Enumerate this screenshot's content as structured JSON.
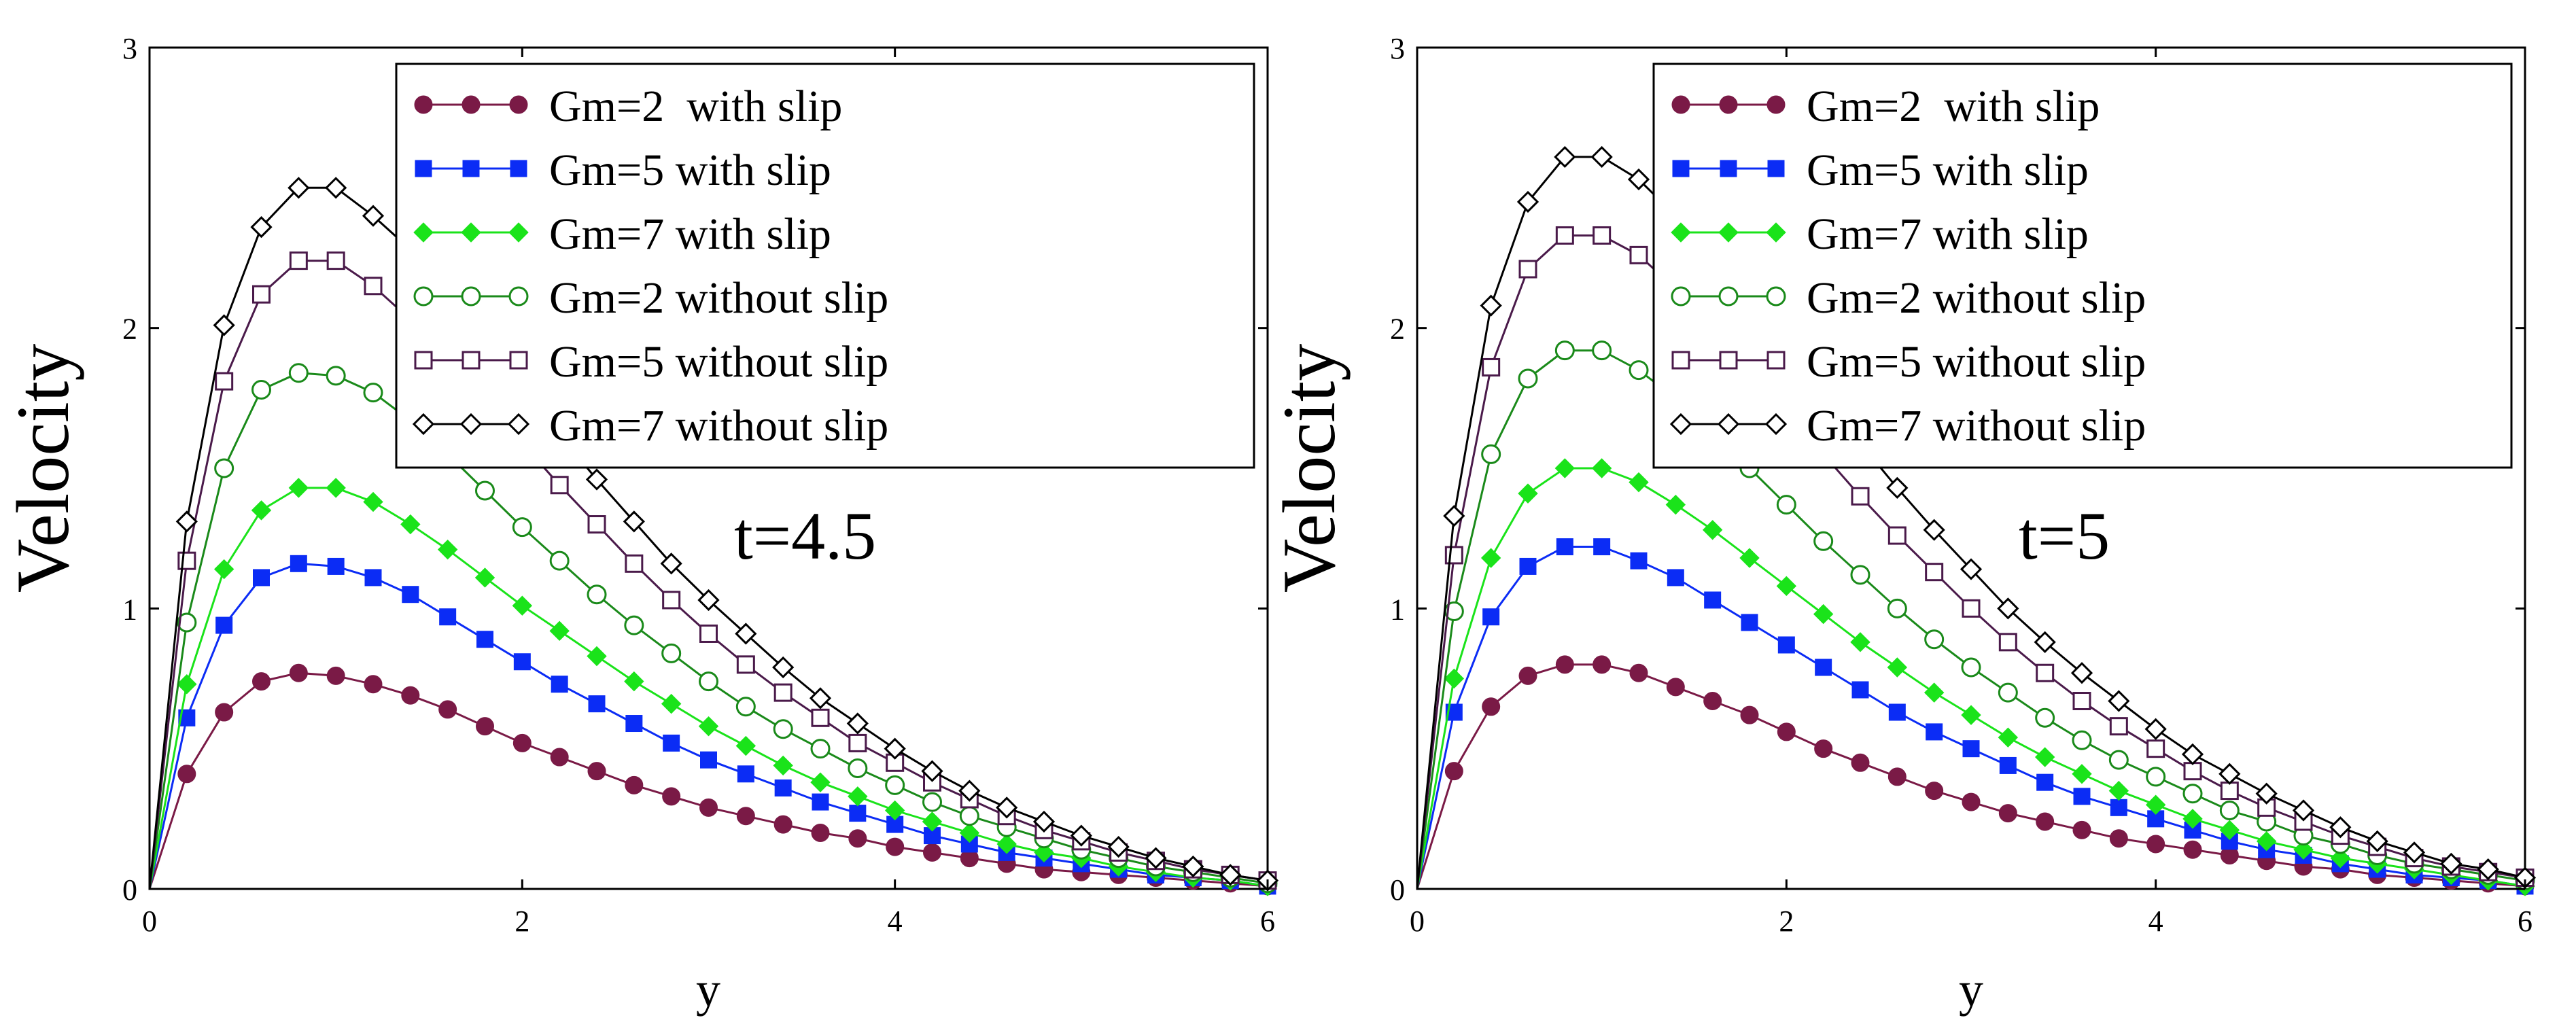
{
  "chart_data": [
    {
      "type": "line",
      "annotation": "t=4.5",
      "xlabel": "y",
      "ylabel": "Velocity",
      "xlim": [
        0,
        6
      ],
      "ylim": [
        0,
        3
      ],
      "xticks": [
        "0",
        "2",
        "4",
        "6"
      ],
      "yticks": [
        "0",
        "1",
        "2",
        "3"
      ],
      "grid": false,
      "legend_position": "top-right",
      "x": [
        0,
        0.2,
        0.4,
        0.6,
        0.8,
        1.0,
        1.2,
        1.4,
        1.6,
        1.8,
        2.0,
        2.2,
        2.4,
        2.6,
        2.8,
        3.0,
        3.2,
        3.4,
        3.6,
        3.8,
        4.0,
        4.2,
        4.4,
        4.6,
        4.8,
        5.0,
        5.2,
        5.4,
        5.6,
        5.8,
        6.0
      ],
      "series": [
        {
          "name": "Gm=2  with slip",
          "marker": "filled-circle",
          "color": "#7a1a46",
          "values": [
            0.0,
            0.41,
            0.63,
            0.74,
            0.77,
            0.76,
            0.73,
            0.69,
            0.64,
            0.58,
            0.52,
            0.47,
            0.42,
            0.37,
            0.33,
            0.29,
            0.26,
            0.23,
            0.2,
            0.18,
            0.15,
            0.13,
            0.11,
            0.09,
            0.07,
            0.06,
            0.05,
            0.04,
            0.03,
            0.02,
            0.01
          ]
        },
        {
          "name": "Gm=5 with slip",
          "marker": "filled-square",
          "color": "#0b2cf5",
          "values": [
            0.0,
            0.61,
            0.94,
            1.11,
            1.16,
            1.15,
            1.11,
            1.05,
            0.97,
            0.89,
            0.81,
            0.73,
            0.66,
            0.59,
            0.52,
            0.46,
            0.41,
            0.36,
            0.31,
            0.27,
            0.23,
            0.19,
            0.16,
            0.13,
            0.11,
            0.09,
            0.07,
            0.05,
            0.04,
            0.03,
            0.01
          ]
        },
        {
          "name": "Gm=7 with slip",
          "marker": "filled-diamond",
          "color": "#1ae31a",
          "values": [
            0.0,
            0.73,
            1.14,
            1.35,
            1.43,
            1.43,
            1.38,
            1.3,
            1.21,
            1.11,
            1.01,
            0.92,
            0.83,
            0.74,
            0.66,
            0.58,
            0.51,
            0.44,
            0.38,
            0.33,
            0.28,
            0.24,
            0.2,
            0.16,
            0.13,
            0.11,
            0.08,
            0.06,
            0.04,
            0.03,
            0.01
          ]
        },
        {
          "name": "Gm=2 without slip",
          "marker": "open-circle",
          "color": "#1a8a1a",
          "values": [
            0.0,
            0.95,
            1.5,
            1.78,
            1.84,
            1.83,
            1.77,
            1.67,
            1.55,
            1.42,
            1.29,
            1.17,
            1.05,
            0.94,
            0.84,
            0.74,
            0.65,
            0.57,
            0.5,
            0.43,
            0.37,
            0.31,
            0.26,
            0.22,
            0.18,
            0.14,
            0.11,
            0.08,
            0.06,
            0.04,
            0.02
          ]
        },
        {
          "name": "Gm=5 without slip",
          "marker": "open-square",
          "color": "#4a1a4a",
          "values": [
            0.0,
            1.17,
            1.81,
            2.12,
            2.24,
            2.24,
            2.15,
            2.03,
            1.89,
            1.74,
            1.59,
            1.44,
            1.3,
            1.16,
            1.03,
            0.91,
            0.8,
            0.7,
            0.61,
            0.52,
            0.45,
            0.38,
            0.32,
            0.26,
            0.21,
            0.17,
            0.13,
            0.1,
            0.07,
            0.05,
            0.03
          ]
        },
        {
          "name": "Gm=7 without slip",
          "marker": "open-diamond",
          "color": "#000000",
          "values": [
            0.0,
            1.31,
            2.01,
            2.36,
            2.5,
            2.5,
            2.4,
            2.28,
            2.12,
            1.96,
            1.79,
            1.62,
            1.46,
            1.31,
            1.16,
            1.03,
            0.91,
            0.79,
            0.68,
            0.59,
            0.5,
            0.42,
            0.35,
            0.29,
            0.24,
            0.19,
            0.15,
            0.11,
            0.08,
            0.05,
            0.03
          ]
        }
      ]
    },
    {
      "type": "line",
      "annotation": "t=5",
      "xlabel": "y",
      "ylabel": "Velocity",
      "xlim": [
        0,
        6
      ],
      "ylim": [
        0,
        3
      ],
      "xticks": [
        "0",
        "2",
        "4",
        "6"
      ],
      "yticks": [
        "0",
        "1",
        "2",
        "3"
      ],
      "grid": false,
      "legend_position": "top-right",
      "x": [
        0,
        0.2,
        0.4,
        0.6,
        0.8,
        1.0,
        1.2,
        1.4,
        1.6,
        1.8,
        2.0,
        2.2,
        2.4,
        2.6,
        2.8,
        3.0,
        3.2,
        3.4,
        3.6,
        3.8,
        4.0,
        4.2,
        4.4,
        4.6,
        4.8,
        5.0,
        5.2,
        5.4,
        5.6,
        5.8,
        6.0
      ],
      "series": [
        {
          "name": "Gm=2  with slip",
          "marker": "filled-circle",
          "color": "#7a1a46",
          "values": [
            0.0,
            0.42,
            0.65,
            0.76,
            0.8,
            0.8,
            0.77,
            0.72,
            0.67,
            0.62,
            0.56,
            0.5,
            0.45,
            0.4,
            0.35,
            0.31,
            0.27,
            0.24,
            0.21,
            0.18,
            0.16,
            0.14,
            0.12,
            0.1,
            0.08,
            0.07,
            0.05,
            0.04,
            0.03,
            0.02,
            0.01
          ]
        },
        {
          "name": "Gm=5 with slip",
          "marker": "filled-square",
          "color": "#0b2cf5",
          "values": [
            0.0,
            0.63,
            0.97,
            1.15,
            1.22,
            1.22,
            1.17,
            1.11,
            1.03,
            0.95,
            0.87,
            0.79,
            0.71,
            0.63,
            0.56,
            0.5,
            0.44,
            0.38,
            0.33,
            0.29,
            0.25,
            0.21,
            0.17,
            0.14,
            0.12,
            0.09,
            0.07,
            0.05,
            0.04,
            0.03,
            0.01
          ]
        },
        {
          "name": "Gm=7 with slip",
          "marker": "filled-diamond",
          "color": "#1ae31a",
          "values": [
            0.0,
            0.75,
            1.18,
            1.41,
            1.5,
            1.5,
            1.45,
            1.37,
            1.28,
            1.18,
            1.08,
            0.98,
            0.88,
            0.79,
            0.7,
            0.62,
            0.54,
            0.47,
            0.41,
            0.35,
            0.3,
            0.25,
            0.21,
            0.17,
            0.14,
            0.11,
            0.09,
            0.07,
            0.05,
            0.03,
            0.01
          ]
        },
        {
          "name": "Gm=2 without slip",
          "marker": "open-circle",
          "color": "#1a8a1a",
          "values": [
            0.0,
            0.99,
            1.55,
            1.82,
            1.92,
            1.92,
            1.85,
            1.75,
            1.63,
            1.5,
            1.37,
            1.24,
            1.12,
            1.0,
            0.89,
            0.79,
            0.7,
            0.61,
            0.53,
            0.46,
            0.4,
            0.34,
            0.28,
            0.24,
            0.19,
            0.16,
            0.12,
            0.09,
            0.07,
            0.05,
            0.03
          ]
        },
        {
          "name": "Gm=5 without slip",
          "marker": "open-square",
          "color": "#4a1a4a",
          "values": [
            0.0,
            1.19,
            1.86,
            2.21,
            2.33,
            2.33,
            2.26,
            2.14,
            2.0,
            1.85,
            1.7,
            1.55,
            1.4,
            1.26,
            1.13,
            1.0,
            0.88,
            0.77,
            0.67,
            0.58,
            0.5,
            0.42,
            0.35,
            0.29,
            0.24,
            0.19,
            0.15,
            0.11,
            0.08,
            0.06,
            0.04
          ]
        },
        {
          "name": "Gm=7 without slip",
          "marker": "open-diamond",
          "color": "#000000",
          "values": [
            0.0,
            1.33,
            2.08,
            2.45,
            2.61,
            2.61,
            2.53,
            2.4,
            2.25,
            2.09,
            1.92,
            1.75,
            1.59,
            1.43,
            1.28,
            1.14,
            1.0,
            0.88,
            0.77,
            0.67,
            0.57,
            0.48,
            0.41,
            0.34,
            0.28,
            0.22,
            0.17,
            0.13,
            0.09,
            0.07,
            0.04
          ]
        }
      ]
    }
  ]
}
